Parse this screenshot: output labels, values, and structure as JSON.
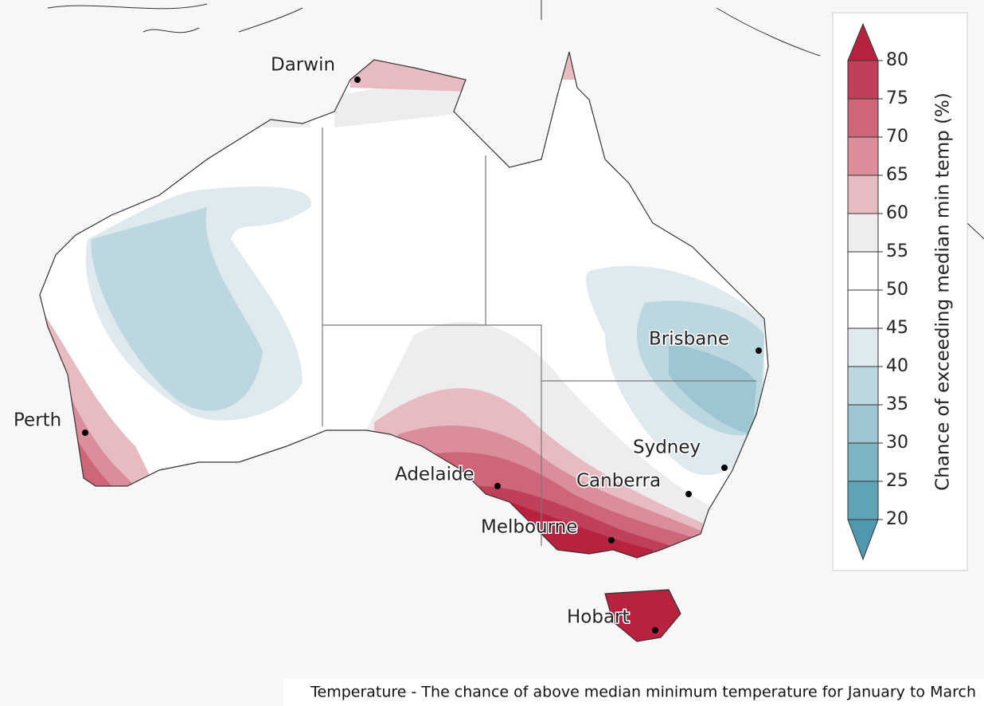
{
  "map": {
    "cities": [
      "Darwin",
      "Perth",
      "Brisbane",
      "Sydney",
      "Adelaide",
      "Canberra",
      "Melbourne",
      "Hobart"
    ],
    "colorbar": {
      "label": "Chance of exceeding median min temp (%)",
      "ticks": [
        20,
        25,
        30,
        35,
        40,
        45,
        50,
        55,
        60,
        65,
        70,
        75,
        80
      ],
      "colors": [
        "#5fa3b8",
        "#7db4c5",
        "#9dc6d2",
        "#bcd7df",
        "#dfeaee",
        "#ffffff",
        "#ffffff",
        "#eeeced",
        "#e8bac1",
        "#db8e9a",
        "#cd6678",
        "#bf4058"
      ],
      "under_color": "#4e98b0",
      "over_color": "#b8223f"
    }
  },
  "caption": "Temperature - The chance of above median minimum temperature for January to March"
}
